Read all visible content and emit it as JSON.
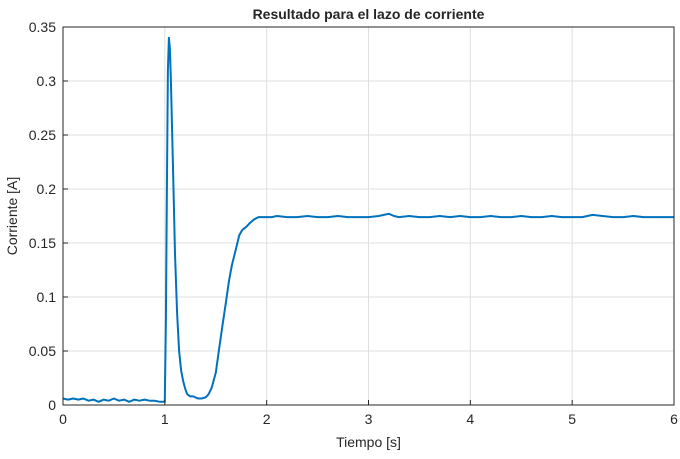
{
  "chart_data": {
    "type": "line",
    "title": "Resultado para el lazo de corriente",
    "xlabel": "Tiempo [s]",
    "ylabel": "Corriente [A]",
    "xlim": [
      0,
      6
    ],
    "ylim": [
      0,
      0.35
    ],
    "xticks": [
      "0",
      "1",
      "2",
      "3",
      "4",
      "5",
      "6"
    ],
    "yticks": [
      "0",
      "0.05",
      "0.1",
      "0.15",
      "0.2",
      "0.25",
      "0.3",
      "0.35"
    ],
    "grid": true,
    "series": [
      {
        "color": "#0072BD",
        "x": [
          0,
          0.05,
          0.1,
          0.15,
          0.2,
          0.25,
          0.3,
          0.35,
          0.4,
          0.45,
          0.5,
          0.55,
          0.6,
          0.65,
          0.7,
          0.75,
          0.8,
          0.85,
          0.9,
          0.95,
          1.0,
          1.01,
          1.02,
          1.03,
          1.04,
          1.05,
          1.06,
          1.08,
          1.1,
          1.12,
          1.14,
          1.16,
          1.18,
          1.2,
          1.22,
          1.25,
          1.28,
          1.3,
          1.33,
          1.36,
          1.4,
          1.43,
          1.46,
          1.5,
          1.53,
          1.56,
          1.6,
          1.63,
          1.66,
          1.7,
          1.73,
          1.76,
          1.8,
          1.84,
          1.88,
          1.92,
          1.96,
          2.0,
          2.05,
          2.1,
          2.2,
          2.3,
          2.4,
          2.5,
          2.6,
          2.7,
          2.8,
          2.9,
          3.0,
          3.1,
          3.15,
          3.2,
          3.25,
          3.3,
          3.4,
          3.5,
          3.6,
          3.7,
          3.8,
          3.9,
          4.0,
          4.1,
          4.2,
          4.3,
          4.4,
          4.5,
          4.6,
          4.7,
          4.8,
          4.9,
          5.0,
          5.1,
          5.15,
          5.2,
          5.3,
          5.4,
          5.5,
          5.6,
          5.7,
          5.8,
          5.9,
          6.0
        ],
        "y": [
          0.006,
          0.005,
          0.006,
          0.005,
          0.006,
          0.004,
          0.005,
          0.003,
          0.005,
          0.004,
          0.006,
          0.004,
          0.005,
          0.003,
          0.005,
          0.004,
          0.005,
          0.004,
          0.004,
          0.003,
          0.003,
          0.08,
          0.2,
          0.31,
          0.34,
          0.33,
          0.3,
          0.22,
          0.14,
          0.085,
          0.05,
          0.032,
          0.022,
          0.015,
          0.01,
          0.008,
          0.008,
          0.007,
          0.006,
          0.006,
          0.007,
          0.01,
          0.016,
          0.03,
          0.05,
          0.07,
          0.095,
          0.115,
          0.13,
          0.145,
          0.157,
          0.162,
          0.165,
          0.169,
          0.172,
          0.174,
          0.174,
          0.174,
          0.174,
          0.175,
          0.174,
          0.174,
          0.175,
          0.174,
          0.174,
          0.175,
          0.174,
          0.174,
          0.174,
          0.175,
          0.176,
          0.177,
          0.175,
          0.174,
          0.175,
          0.174,
          0.174,
          0.175,
          0.174,
          0.175,
          0.174,
          0.174,
          0.175,
          0.174,
          0.174,
          0.175,
          0.174,
          0.174,
          0.175,
          0.174,
          0.174,
          0.174,
          0.175,
          0.176,
          0.175,
          0.174,
          0.174,
          0.175,
          0.174,
          0.174,
          0.174,
          0.174
        ]
      }
    ]
  }
}
